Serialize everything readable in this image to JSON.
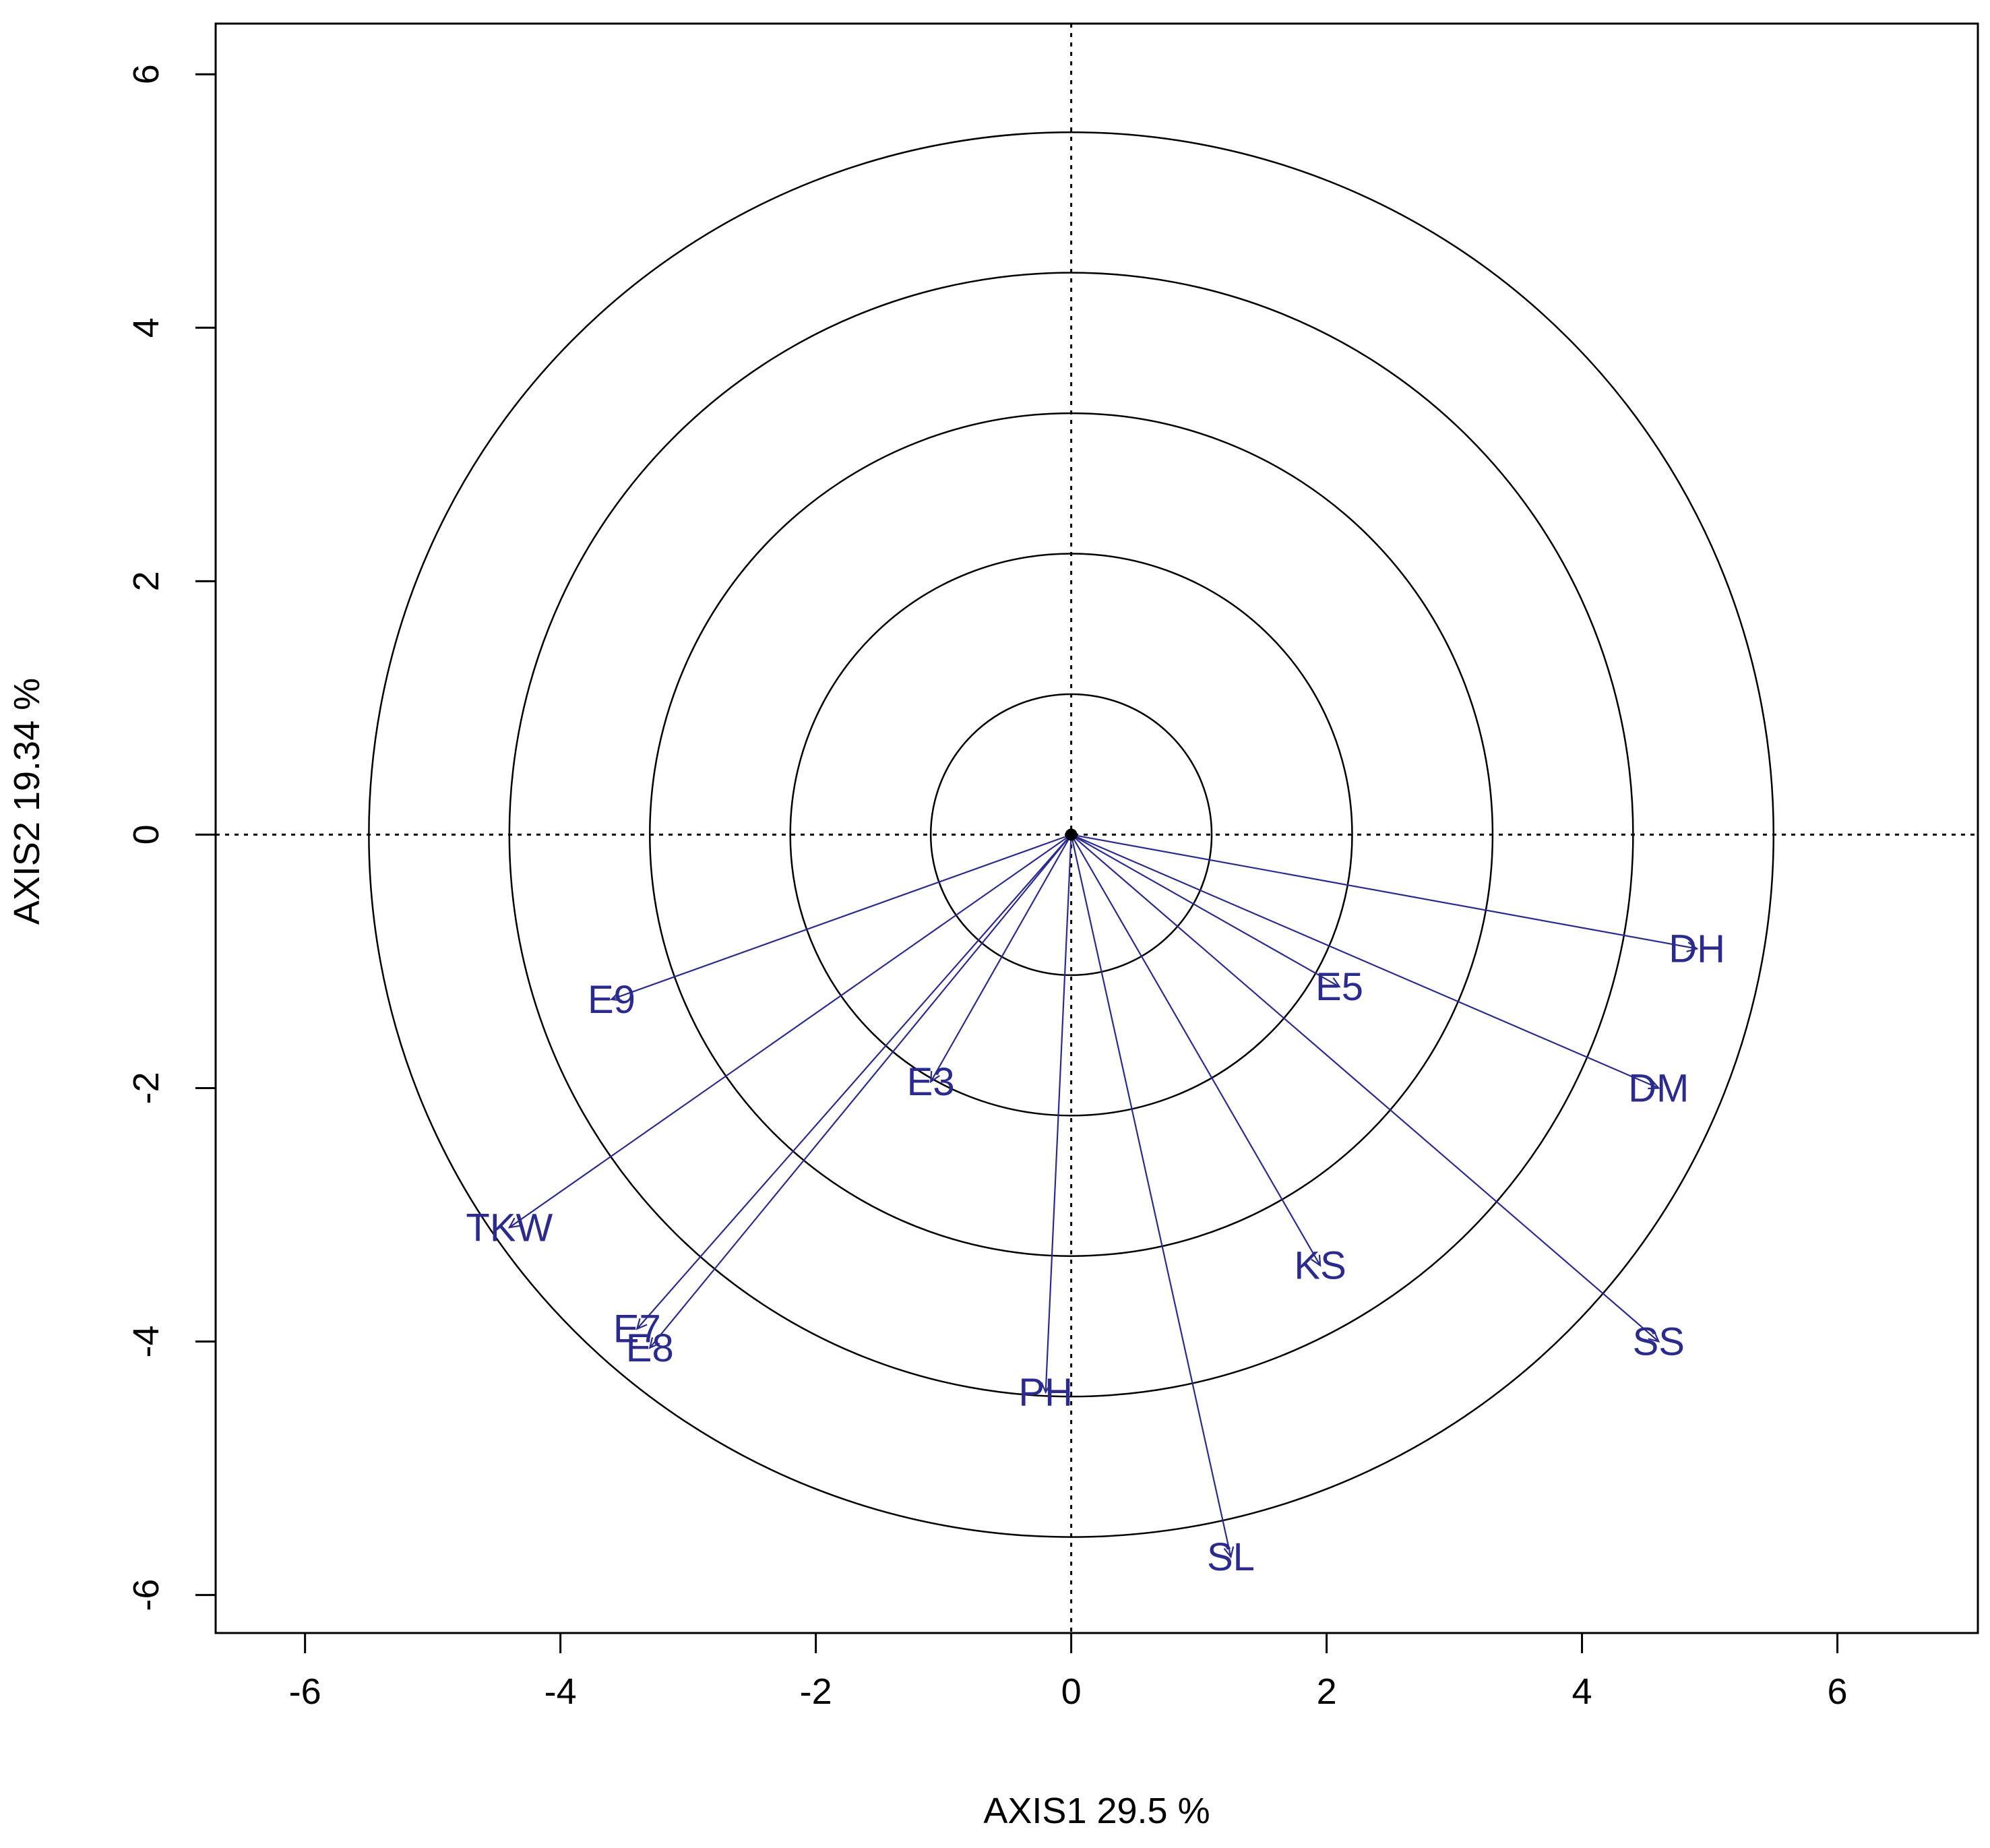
{
  "chart_data": {
    "type": "scatter",
    "subtype": "biplot-vectors",
    "title": "",
    "xlabel": "AXIS1 29.5 %",
    "ylabel": "AXIS2 19.34 %",
    "xlim": [
      -6.7,
      7.1
    ],
    "ylim": [
      -6.3,
      6.4
    ],
    "xticks": [
      -6,
      -4,
      -2,
      0,
      2,
      4,
      6
    ],
    "yticks": [
      -6,
      -4,
      -2,
      0,
      2,
      4,
      6
    ],
    "grid": false,
    "reference_lines": {
      "x": 0,
      "y": 0,
      "style": "dotted"
    },
    "circles_radius": [
      1.1,
      2.2,
      3.3,
      4.4,
      5.5
    ],
    "vector_color": "#2b2b8f",
    "points": [
      {
        "label": "DH",
        "x": 4.9,
        "y": -0.9
      },
      {
        "label": "E5",
        "x": 2.1,
        "y": -1.2
      },
      {
        "label": "DM",
        "x": 4.6,
        "y": -2.0
      },
      {
        "label": "KS",
        "x": 1.95,
        "y": -3.4
      },
      {
        "label": "SS",
        "x": 4.6,
        "y": -4.0
      },
      {
        "label": "SL",
        "x": 1.25,
        "y": -5.7
      },
      {
        "label": "PH",
        "x": -0.2,
        "y": -4.4
      },
      {
        "label": "E3",
        "x": -1.1,
        "y": -1.95
      },
      {
        "label": "E9",
        "x": -3.6,
        "y": -1.3
      },
      {
        "label": "TKW",
        "x": -4.4,
        "y": -3.1
      },
      {
        "label": "E7",
        "x": -3.4,
        "y": -3.9
      },
      {
        "label": "E8",
        "x": -3.3,
        "y": -4.05
      }
    ]
  }
}
